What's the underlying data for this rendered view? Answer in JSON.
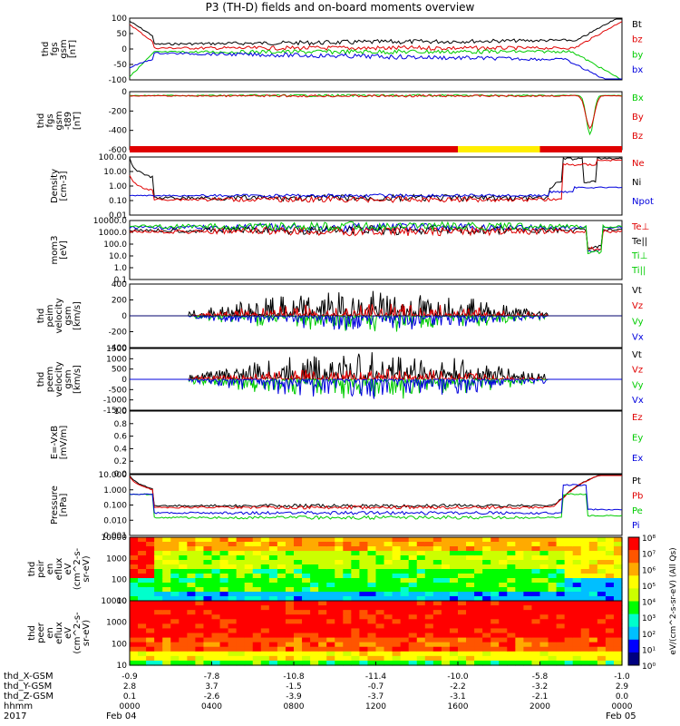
{
  "title": "P3 (TH-D) fields and on-board moments overview",
  "colors": {
    "black": "#000000",
    "red": "#e00000",
    "green": "#00cc00",
    "blue": "#0000dd",
    "yellow": "#ffee00"
  },
  "panels": [
    {
      "id": "fgs",
      "ylabel": [
        "thd",
        "fgs",
        "gsm",
        "[nT]"
      ],
      "ticks": [
        "100",
        "50",
        "0",
        "-50",
        "-100"
      ],
      "legend": [
        {
          "t": "Bt",
          "c": "black"
        },
        {
          "t": "bz",
          "c": "red"
        },
        {
          "t": "by",
          "c": "green"
        },
        {
          "t": "bx",
          "c": "blue"
        }
      ]
    },
    {
      "id": "t89",
      "ylabel": [
        "thd",
        "fgs",
        "gsm",
        "-t89",
        "[nT]"
      ],
      "ticks": [
        "0",
        "-200",
        "-400",
        "-600"
      ],
      "legend": [
        {
          "t": "Bx",
          "c": "green"
        },
        {
          "t": "By",
          "c": "red"
        },
        {
          "t": "Bz",
          "c": "red"
        }
      ]
    },
    {
      "id": "density",
      "ylabel": [
        "Density",
        "[cm-3]"
      ],
      "ticks": [
        "100.00",
        "10.00",
        "1.00",
        "0.10",
        "0.01"
      ],
      "legend": [
        {
          "t": "Ne",
          "c": "red"
        },
        {
          "t": "Ni",
          "c": "black"
        },
        {
          "t": "Npot",
          "c": "blue"
        }
      ]
    },
    {
      "id": "temp",
      "ylabel": [
        "mom3",
        "[eV]"
      ],
      "ticks": [
        "10000.0",
        "1000.0",
        "100.0",
        "10.0",
        "1.0",
        "0.1"
      ],
      "legend": [
        {
          "t": "Te⊥",
          "c": "red"
        },
        {
          "t": "Te||",
          "c": "black"
        },
        {
          "t": "Ti⊥",
          "c": "green"
        },
        {
          "t": "Ti||",
          "c": "green"
        }
      ]
    },
    {
      "id": "peim",
      "ylabel": [
        "thd",
        "peim",
        "velocity",
        "gsm",
        "[km/s]"
      ],
      "ticks": [
        "400",
        "200",
        "0",
        "-200",
        "-400"
      ],
      "legend": [
        {
          "t": "Vt",
          "c": "black"
        },
        {
          "t": "Vz",
          "c": "red"
        },
        {
          "t": "Vy",
          "c": "green"
        },
        {
          "t": "Vx",
          "c": "blue"
        }
      ]
    },
    {
      "id": "peem",
      "ylabel": [
        "thd",
        "peem",
        "velocity",
        "gsm",
        "[km/s]"
      ],
      "ticks": [
        "1500",
        "1000",
        "500",
        "0",
        "-500",
        "-1000",
        "-1500"
      ],
      "legend": [
        {
          "t": "Vt",
          "c": "black"
        },
        {
          "t": "Vz",
          "c": "red"
        },
        {
          "t": "Vy",
          "c": "green"
        },
        {
          "t": "Vx",
          "c": "blue"
        }
      ]
    },
    {
      "id": "efield",
      "ylabel": [
        "E=-VxB",
        "[mV/m]"
      ],
      "ticks": [
        "1.0",
        "0.8",
        "0.6",
        "0.4",
        "0.2",
        "0.0"
      ],
      "legend": [
        {
          "t": "Ez",
          "c": "red"
        },
        {
          "t": "Ey",
          "c": "green"
        },
        {
          "t": "Ex",
          "c": "blue"
        }
      ]
    },
    {
      "id": "pressure",
      "ylabel": [
        "Pressure",
        "[nPa]"
      ],
      "ticks": [
        "10.000",
        "1.000",
        "0.100",
        "0.010",
        "0.001"
      ],
      "legend": [
        {
          "t": "Pt",
          "c": "black"
        },
        {
          "t": "Pb",
          "c": "red"
        },
        {
          "t": "Pe",
          "c": "green"
        },
        {
          "t": "Pi",
          "c": "blue"
        }
      ]
    },
    {
      "id": "peir",
      "ylabel": [
        "thd",
        "peir",
        "en",
        "eflux",
        "eV",
        "(cm^2-s-",
        "sr-eV)"
      ],
      "ticks": [
        "10000",
        "1000",
        "100",
        "10"
      ],
      "legend": []
    },
    {
      "id": "peer",
      "ylabel": [
        "thd",
        "peer",
        "en",
        "eflux",
        "eV",
        "(cm^2-s-",
        "sr-eV)"
      ],
      "ticks": [
        "10000",
        "1000",
        "100",
        "10"
      ],
      "legend": []
    }
  ],
  "colorbar": {
    "ticks": [
      "10⁸",
      "10⁷",
      "10⁶",
      "10⁵",
      "10⁴",
      "10³",
      "10²",
      "10¹",
      "10⁰"
    ],
    "label": "eV/(cm^2-s-sr-eV) (All Qs)"
  },
  "chart_data": {
    "type": "line",
    "title": "P3 (TH-D) fields and on-board moments overview",
    "x_ticks": [
      "0000",
      "0400",
      "0800",
      "1200",
      "1600",
      "2000",
      "0000"
    ],
    "x_label": "hhmm",
    "year": "2017",
    "date_start": "Feb 04",
    "date_end": "Feb 05",
    "positions": [
      {
        "label": "thd_X-GSM",
        "values": [
          "-0.9",
          "-7.8",
          "-10.8",
          "-11.4",
          "-10.0",
          "-5.8",
          "-1.0"
        ]
      },
      {
        "label": "thd_Y-GSM",
        "values": [
          "2.8",
          "3.7",
          "-1.5",
          "-0.7",
          "-2.2",
          "-3.2",
          "2.9"
        ]
      },
      {
        "label": "thd_Z-GSM",
        "values": [
          "0.1",
          "-2.6",
          "-3.9",
          "-3.7",
          "-3.1",
          "-2.1",
          "0.0"
        ]
      }
    ],
    "series_fgs": {
      "Bt_approx": [
        100,
        10,
        8,
        12,
        15,
        30,
        100
      ],
      "bz_approx": [
        100,
        5,
        3,
        5,
        8,
        20,
        100
      ]
    },
    "state_bar": [
      {
        "from": 0,
        "to": 16,
        "color": "red"
      },
      {
        "from": 16,
        "to": 20,
        "color": "yellow"
      },
      {
        "from": 20,
        "to": 24,
        "color": "red"
      }
    ]
  }
}
